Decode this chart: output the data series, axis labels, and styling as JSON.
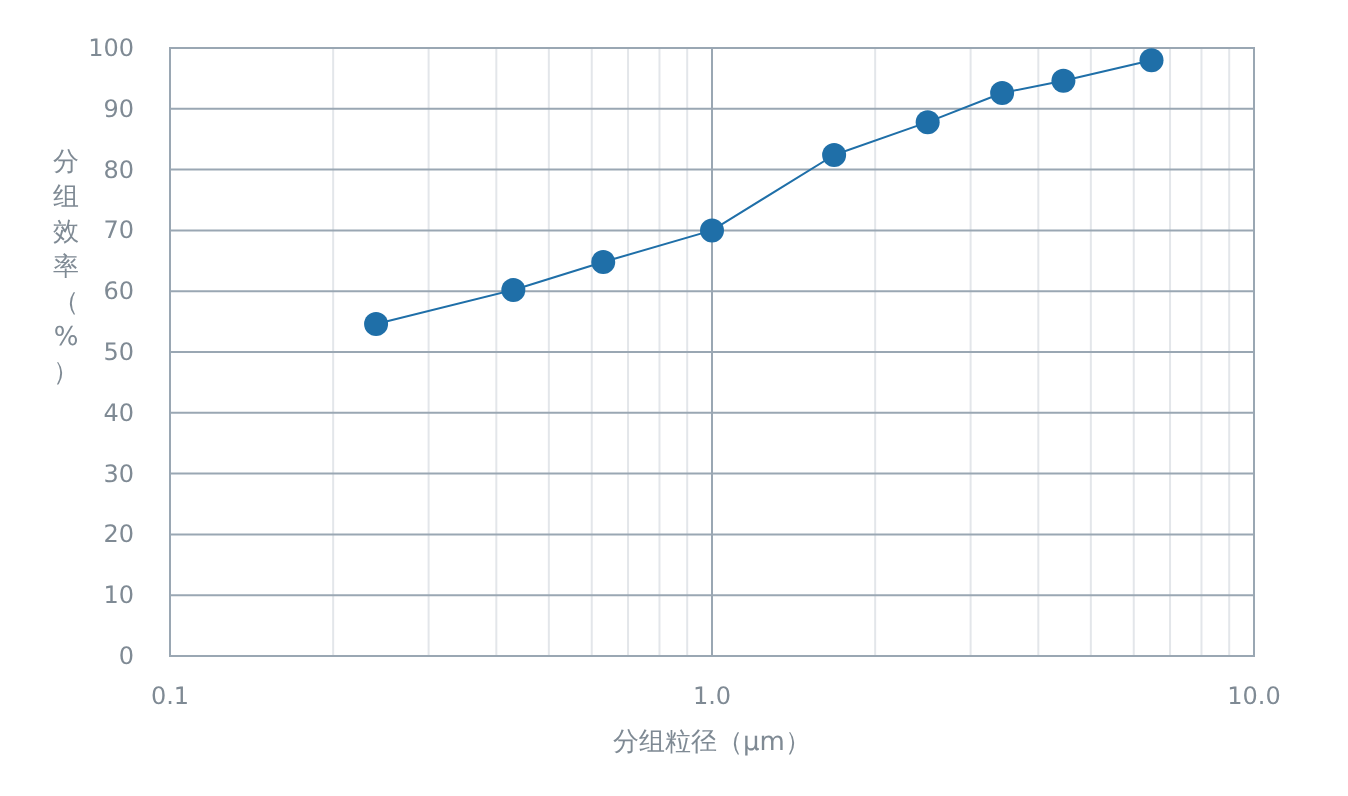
{
  "chart_data": {
    "type": "line",
    "xlabel": "分组粒径（μm）",
    "ylabel": "分组效率（%）",
    "x": [
      0.24,
      0.43,
      0.63,
      1.0,
      1.68,
      2.5,
      3.43,
      4.45,
      6.47
    ],
    "series": [
      {
        "color": "#1f6fa8",
        "values": [
          54.6,
          60.2,
          64.8,
          70,
          82.4,
          87.8,
          92.6,
          94.6,
          98
        ]
      }
    ],
    "log": "x",
    "xlim": [
      0.1,
      10
    ],
    "xticks": [
      {
        "value": 0.1,
        "label": "0.1"
      },
      {
        "value": 1,
        "label": "1.0"
      },
      {
        "value": 10,
        "label": "10.0"
      }
    ],
    "ylim": [
      0,
      100
    ],
    "yticks": [
      0,
      10,
      20,
      30,
      40,
      50,
      60,
      70,
      80,
      90,
      100
    ],
    "grid": true,
    "marker": "circle",
    "line_style": "solid"
  }
}
